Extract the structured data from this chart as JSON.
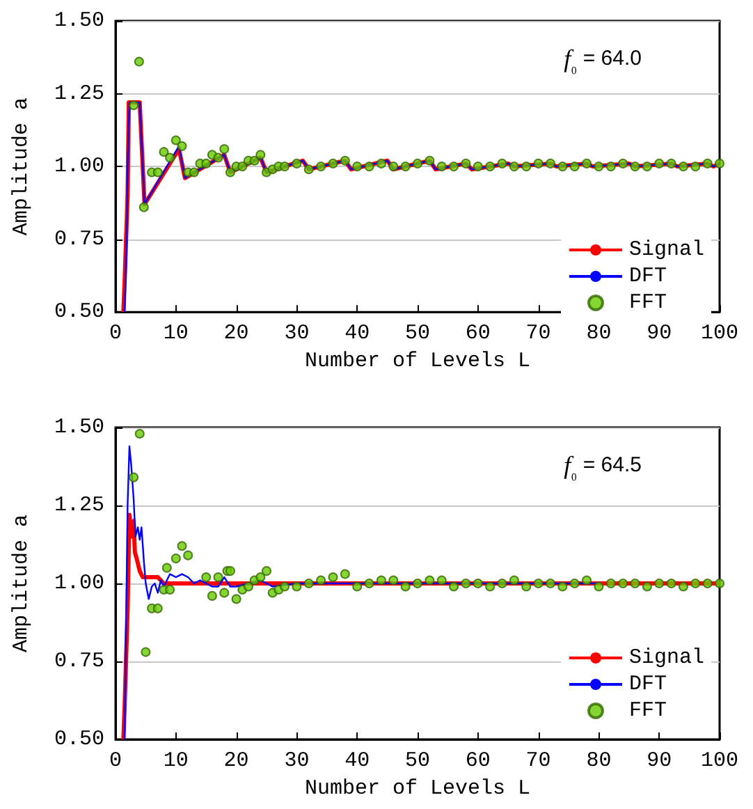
{
  "chart_data": [
    {
      "type": "line",
      "xlabel": "Number of Levels L",
      "ylabel": "Amplitude a",
      "annotations": [
        "f₀ = 64.0"
      ],
      "xlim": [
        0,
        100
      ],
      "xticks": [
        0,
        10,
        20,
        30,
        40,
        50,
        60,
        70,
        80,
        90,
        100
      ],
      "ylim": [
        0.5,
        1.5
      ],
      "yticks": [
        {
          "value": 0.5,
          "label": "0.50"
        },
        {
          "value": 0.75,
          "label": "0.75"
        },
        {
          "value": 1,
          "label": "1.00"
        },
        {
          "value": 1.25,
          "label": "1.25"
        },
        {
          "value": 1.5,
          "label": "1.50"
        }
      ],
      "grid": "y",
      "legend": "bottom right",
      "series": [
        {
          "name": "Signal",
          "color": "#ff0000",
          "x": [
            1.3,
            1.5,
            2,
            2.2,
            4,
            4.8,
            10.5,
            11.5,
            18,
            19,
            24,
            25,
            31,
            32,
            38,
            39,
            45,
            46,
            52,
            53,
            58,
            59,
            65,
            66,
            72,
            73,
            78,
            79,
            85,
            86,
            92,
            93,
            98,
            99,
            100
          ],
          "values": [
            0.5,
            0.6,
            0.9,
            1.22,
            1.22,
            0.87,
            1.06,
            0.96,
            1.04,
            0.98,
            1.03,
            0.98,
            1.02,
            0.99,
            1.02,
            0.99,
            1.02,
            0.99,
            1.02,
            0.99,
            1.01,
            0.99,
            1.01,
            1.0,
            1.01,
            1.0,
            1.01,
            1.0,
            1.01,
            1.0,
            1.01,
            1.0,
            1.01,
            1.0,
            1.01
          ]
        },
        {
          "name": "DFT",
          "color": "#0000ff",
          "x": [
            1.5,
            1.8,
            2,
            2.3,
            4,
            4.8,
            10.5,
            11.5,
            18,
            19,
            24,
            25,
            31,
            32,
            38,
            39,
            45,
            46,
            52,
            53,
            58,
            59,
            65,
            66,
            72,
            73,
            78,
            79,
            85,
            86,
            92,
            93,
            98,
            99,
            100
          ],
          "values": [
            0.5,
            0.7,
            1.0,
            1.22,
            1.22,
            0.87,
            1.07,
            0.96,
            1.04,
            0.98,
            1.03,
            0.98,
            1.02,
            0.99,
            1.02,
            0.99,
            1.02,
            0.99,
            1.02,
            0.99,
            1.01,
            0.99,
            1.01,
            1.0,
            1.01,
            1.0,
            1.01,
            1.0,
            1.01,
            1.0,
            1.01,
            1.0,
            1.01,
            1.0,
            1.01
          ]
        },
        {
          "name": "FFT",
          "type": "scatter",
          "marker": "circle",
          "color": "#66cc00",
          "x": [
            3,
            3.9,
            4.7,
            6,
            7,
            8,
            9,
            10,
            11,
            12,
            13,
            14,
            15,
            16,
            17,
            18,
            19,
            20,
            21,
            22,
            23,
            24,
            25,
            26,
            27,
            28,
            30,
            32,
            34,
            36,
            38,
            40,
            42,
            44,
            46,
            48,
            50,
            52,
            54,
            56,
            58,
            60,
            62,
            64,
            66,
            68,
            70,
            72,
            74,
            76,
            78,
            80,
            82,
            84,
            86,
            88,
            90,
            92,
            94,
            96,
            98,
            100
          ],
          "values": [
            1.21,
            1.36,
            0.86,
            0.98,
            0.98,
            1.05,
            1.03,
            1.09,
            1.07,
            0.98,
            0.98,
            1.01,
            1.01,
            1.04,
            1.03,
            1.06,
            0.98,
            1.0,
            1.0,
            1.02,
            1.02,
            1.04,
            0.98,
            0.99,
            1.0,
            1.0,
            1.01,
            0.99,
            1.0,
            1.01,
            1.02,
            1.0,
            1.0,
            1.01,
            1.0,
            1.0,
            1.01,
            1.02,
            1.0,
            1.0,
            1.01,
            1.0,
            1.0,
            1.01,
            1.0,
            1.0,
            1.01,
            1.01,
            1.0,
            1.0,
            1.01,
            1.0,
            1.0,
            1.01,
            1.0,
            1.0,
            1.01,
            1.01,
            1.0,
            1.0,
            1.01,
            1.01
          ]
        }
      ]
    },
    {
      "type": "line",
      "xlabel": "Number of Levels L",
      "ylabel": "Amplitude a",
      "annotations": [
        "f₀ = 64.5"
      ],
      "xlim": [
        0,
        100
      ],
      "xticks": [
        0,
        10,
        20,
        30,
        40,
        50,
        60,
        70,
        80,
        90,
        100
      ],
      "ylim": [
        0.5,
        1.5
      ],
      "yticks": [
        {
          "value": 0.5,
          "label": "0.50"
        },
        {
          "value": 0.75,
          "label": "0.75"
        },
        {
          "value": 1,
          "label": "1.00"
        },
        {
          "value": 1.25,
          "label": "1.25"
        },
        {
          "value": 1.5,
          "label": "1.50"
        }
      ],
      "grid": "y",
      "legend": "bottom right",
      "series": [
        {
          "name": "Signal",
          "color": "#ff0000",
          "x": [
            1.3,
            1.5,
            2,
            2.3,
            2.6,
            3,
            3.2,
            3.5,
            4,
            4.5,
            7,
            8,
            20,
            40,
            60,
            80,
            100
          ],
          "values": [
            0.5,
            0.6,
            0.92,
            1.22,
            1.15,
            1.2,
            1.1,
            1.08,
            1.04,
            1.02,
            1.02,
            1.0,
            1.0,
            1.0,
            1.0,
            1.0,
            1.0
          ]
        },
        {
          "name": "DFT",
          "color": "#0000ff",
          "x": [
            1.5,
            2,
            2.3,
            2.6,
            3,
            3.3,
            3.7,
            4,
            4.3,
            4.7,
            5,
            5.5,
            6,
            6.5,
            7,
            7.5,
            8,
            9,
            10,
            11,
            12,
            13,
            14,
            15,
            16,
            17,
            18,
            19,
            20,
            22,
            24,
            26,
            30,
            40,
            60,
            80
          ],
          "values": [
            0.5,
            1.25,
            1.44,
            1.38,
            1.27,
            1.15,
            1.18,
            1.14,
            1.18,
            1.07,
            1.0,
            0.95,
            0.99,
            1.0,
            0.97,
            1.01,
            0.99,
            1.03,
            1.02,
            1.03,
            1.02,
            1.0,
            1.01,
            1.0,
            0.99,
            0.99,
            1.02,
            0.99,
            0.99,
            1.0,
            1.01,
            0.99,
            1.0,
            1.0,
            1.0,
            1.0
          ]
        },
        {
          "name": "FFT",
          "type": "scatter",
          "marker": "circle",
          "color": "#66cc00",
          "x": [
            3,
            4,
            5,
            6,
            7,
            8,
            8.5,
            9,
            10,
            11,
            12,
            15,
            16,
            17,
            18,
            18.5,
            19,
            20,
            21,
            22,
            23,
            24,
            25,
            26,
            27,
            28,
            30,
            32,
            34,
            36,
            38,
            40,
            42,
            44,
            46,
            48,
            50,
            52,
            54,
            56,
            58,
            60,
            62,
            64,
            66,
            68,
            70,
            72,
            74,
            76,
            78,
            80,
            82,
            84,
            86,
            88,
            90,
            92,
            94,
            96,
            98,
            100
          ],
          "values": [
            1.34,
            1.48,
            0.78,
            0.92,
            0.92,
            0.98,
            1.05,
            0.98,
            1.08,
            1.12,
            1.09,
            1.02,
            0.96,
            1.02,
            0.97,
            1.04,
            1.04,
            0.95,
            0.98,
            0.99,
            1.01,
            1.02,
            1.04,
            0.97,
            0.98,
            0.99,
            0.99,
            1.0,
            1.01,
            1.02,
            1.03,
            0.99,
            1.0,
            1.01,
            1.01,
            0.99,
            1.0,
            1.01,
            1.01,
            0.99,
            1.0,
            1.0,
            0.99,
            1.0,
            1.01,
            0.99,
            1.0,
            1.0,
            0.99,
            1.0,
            1.01,
            0.99,
            1.0,
            1.0,
            1.0,
            0.99,
            1.0,
            1.0,
            0.99,
            1.0,
            1.0,
            1.0
          ]
        }
      ]
    }
  ]
}
